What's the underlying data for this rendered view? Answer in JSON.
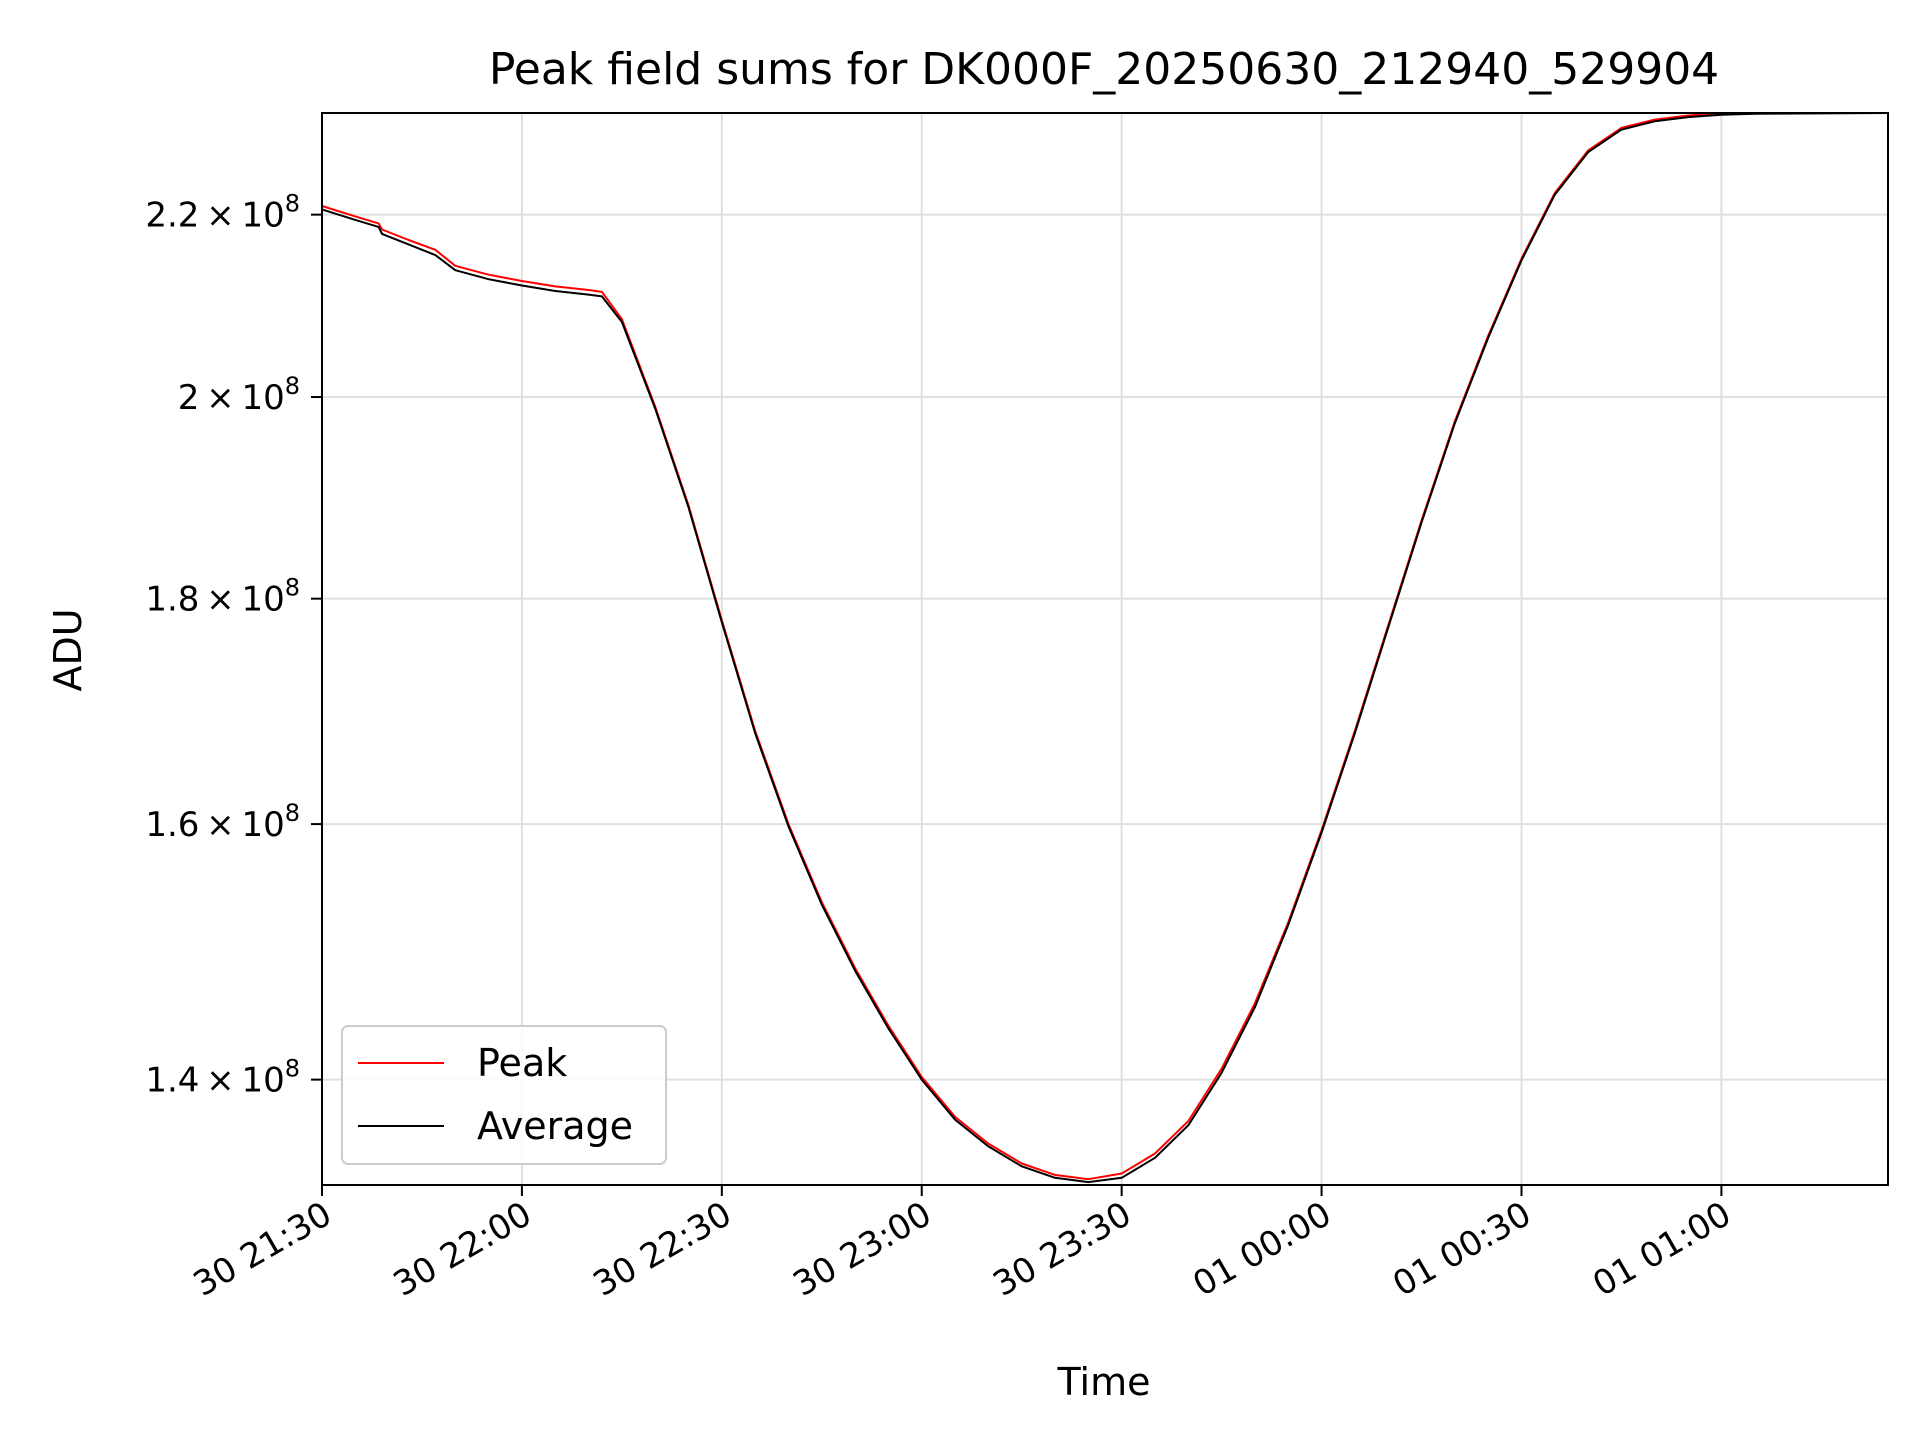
{
  "chart_data": {
    "type": "line",
    "title": "Peak field sums for DK000F_20250630_212940_529904",
    "xlabel": "Time",
    "ylabel": "ADU",
    "xscale": "time",
    "yscale": "log",
    "xlim": [
      "2025-06-30T21:30:00",
      "2025-07-01T01:25:00"
    ],
    "ylim": [
      132500000,
      232000000
    ],
    "grid": true,
    "legend_position": "lower-left",
    "x_ticks": [
      {
        "value": "2025-06-30T21:30:00",
        "label": "30 21:30"
      },
      {
        "value": "2025-06-30T22:00:00",
        "label": "30 22:00"
      },
      {
        "value": "2025-06-30T22:30:00",
        "label": "30 22:30"
      },
      {
        "value": "2025-06-30T23:00:00",
        "label": "30 23:00"
      },
      {
        "value": "2025-06-30T23:30:00",
        "label": "30 23:30"
      },
      {
        "value": "2025-07-01T00:00:00",
        "label": "01 00:00"
      },
      {
        "value": "2025-07-01T00:30:00",
        "label": "01 00:30"
      },
      {
        "value": "2025-07-01T01:00:00",
        "label": "01 01:00"
      }
    ],
    "y_ticks": [
      {
        "value": 140000000,
        "mantissa": "1.4",
        "base": "10",
        "exponent": "8"
      },
      {
        "value": 160000000,
        "mantissa": "1.6",
        "base": "10",
        "exponent": "8"
      },
      {
        "value": 180000000,
        "mantissa": "1.8",
        "base": "10",
        "exponent": "8"
      },
      {
        "value": 200000000,
        "mantissa": "2",
        "base": "10",
        "exponent": "8"
      },
      {
        "value": 220000000,
        "mantissa": "2.2",
        "base": "10",
        "exponent": "8"
      }
    ],
    "series": [
      {
        "name": "Peak",
        "color": "#ff0000",
        "x": [
          "2025-06-30T21:30:00",
          "2025-06-30T21:35:00",
          "2025-06-30T21:38:30",
          "2025-06-30T21:39:00",
          "2025-06-30T21:43:00",
          "2025-06-30T21:47:00",
          "2025-06-30T21:50:00",
          "2025-06-30T21:55:00",
          "2025-06-30T22:00:00",
          "2025-06-30T22:05:00",
          "2025-06-30T22:10:00",
          "2025-06-30T22:12:00",
          "2025-06-30T22:15:00",
          "2025-06-30T22:20:00",
          "2025-06-30T22:25:00",
          "2025-06-30T22:30:00",
          "2025-06-30T22:35:00",
          "2025-06-30T22:40:00",
          "2025-06-30T22:45:00",
          "2025-06-30T22:50:00",
          "2025-06-30T22:55:00",
          "2025-06-30T23:00:00",
          "2025-06-30T23:05:00",
          "2025-06-30T23:10:00",
          "2025-06-30T23:15:00",
          "2025-06-30T23:20:00",
          "2025-06-30T23:25:00",
          "2025-06-30T23:30:00",
          "2025-06-30T23:35:00",
          "2025-06-30T23:40:00",
          "2025-06-30T23:45:00",
          "2025-06-30T23:50:00",
          "2025-06-30T23:55:00",
          "2025-07-01T00:00:00",
          "2025-07-01T00:05:00",
          "2025-07-01T00:10:00",
          "2025-07-01T00:15:00",
          "2025-07-01T00:20:00",
          "2025-07-01T00:25:00",
          "2025-07-01T00:30:00",
          "2025-07-01T00:35:00",
          "2025-07-01T00:40:00",
          "2025-07-01T00:45:00",
          "2025-07-01T00:50:00",
          "2025-07-01T00:55:00",
          "2025-07-01T01:00:00",
          "2025-07-01T01:05:00",
          "2025-07-01T01:25:00"
        ],
        "y": [
          221000000,
          219800000,
          219000000,
          218300000,
          217100000,
          216000000,
          214200000,
          213200000,
          212500000,
          211900000,
          211500000,
          211300000,
          208300000,
          199000000,
          189000000,
          178000000,
          168000000,
          160000000,
          153600000,
          148400000,
          144000000,
          140200000,
          137300000,
          135400000,
          134000000,
          133200000,
          132900000,
          133300000,
          134700000,
          137000000,
          140800000,
          145700000,
          152000000,
          159500000,
          168000000,
          177500000,
          187500000,
          197500000,
          206500000,
          215000000,
          222500000,
          227500000,
          230200000,
          231200000,
          231700000,
          232000000,
          232000000,
          232000000
        ]
      },
      {
        "name": "Average",
        "color": "#000000",
        "x": [
          "2025-06-30T21:30:00",
          "2025-06-30T21:35:00",
          "2025-06-30T21:38:30",
          "2025-06-30T21:39:00",
          "2025-06-30T21:43:00",
          "2025-06-30T21:47:00",
          "2025-06-30T21:50:00",
          "2025-06-30T21:55:00",
          "2025-06-30T22:00:00",
          "2025-06-30T22:05:00",
          "2025-06-30T22:10:00",
          "2025-06-30T22:12:00",
          "2025-06-30T22:15:00",
          "2025-06-30T22:20:00",
          "2025-06-30T22:25:00",
          "2025-06-30T22:30:00",
          "2025-06-30T22:35:00",
          "2025-06-30T22:40:00",
          "2025-06-30T22:45:00",
          "2025-06-30T22:50:00",
          "2025-06-30T22:55:00",
          "2025-06-30T23:00:00",
          "2025-06-30T23:05:00",
          "2025-06-30T23:10:00",
          "2025-06-30T23:15:00",
          "2025-06-30T23:20:00",
          "2025-06-30T23:25:00",
          "2025-06-30T23:30:00",
          "2025-06-30T23:35:00",
          "2025-06-30T23:40:00",
          "2025-06-30T23:45:00",
          "2025-06-30T23:50:00",
          "2025-06-30T23:55:00",
          "2025-07-01T00:00:00",
          "2025-07-01T00:05:00",
          "2025-07-01T00:10:00",
          "2025-07-01T00:15:00",
          "2025-07-01T00:20:00",
          "2025-07-01T00:25:00",
          "2025-07-01T00:30:00",
          "2025-07-01T00:35:00",
          "2025-07-01T00:40:00",
          "2025-07-01T00:45:00",
          "2025-07-01T00:50:00",
          "2025-07-01T00:55:00",
          "2025-07-01T01:00:00",
          "2025-07-01T01:05:00",
          "2025-07-01T01:25:00"
        ],
        "y": [
          220600000,
          219400000,
          218600000,
          217800000,
          216600000,
          215400000,
          213700000,
          212700000,
          212000000,
          211400000,
          211000000,
          210800000,
          208000000,
          198800000,
          188800000,
          177800000,
          167800000,
          159800000,
          153400000,
          148200000,
          143800000,
          140000000,
          137100000,
          135200000,
          133800000,
          133000000,
          132700000,
          133000000,
          134400000,
          136700000,
          140500000,
          145400000,
          151800000,
          159300000,
          167800000,
          177300000,
          187300000,
          197300000,
          206300000,
          214800000,
          222300000,
          227300000,
          230000000,
          231000000,
          231500000,
          231800000,
          231900000,
          232000000
        ]
      }
    ]
  }
}
